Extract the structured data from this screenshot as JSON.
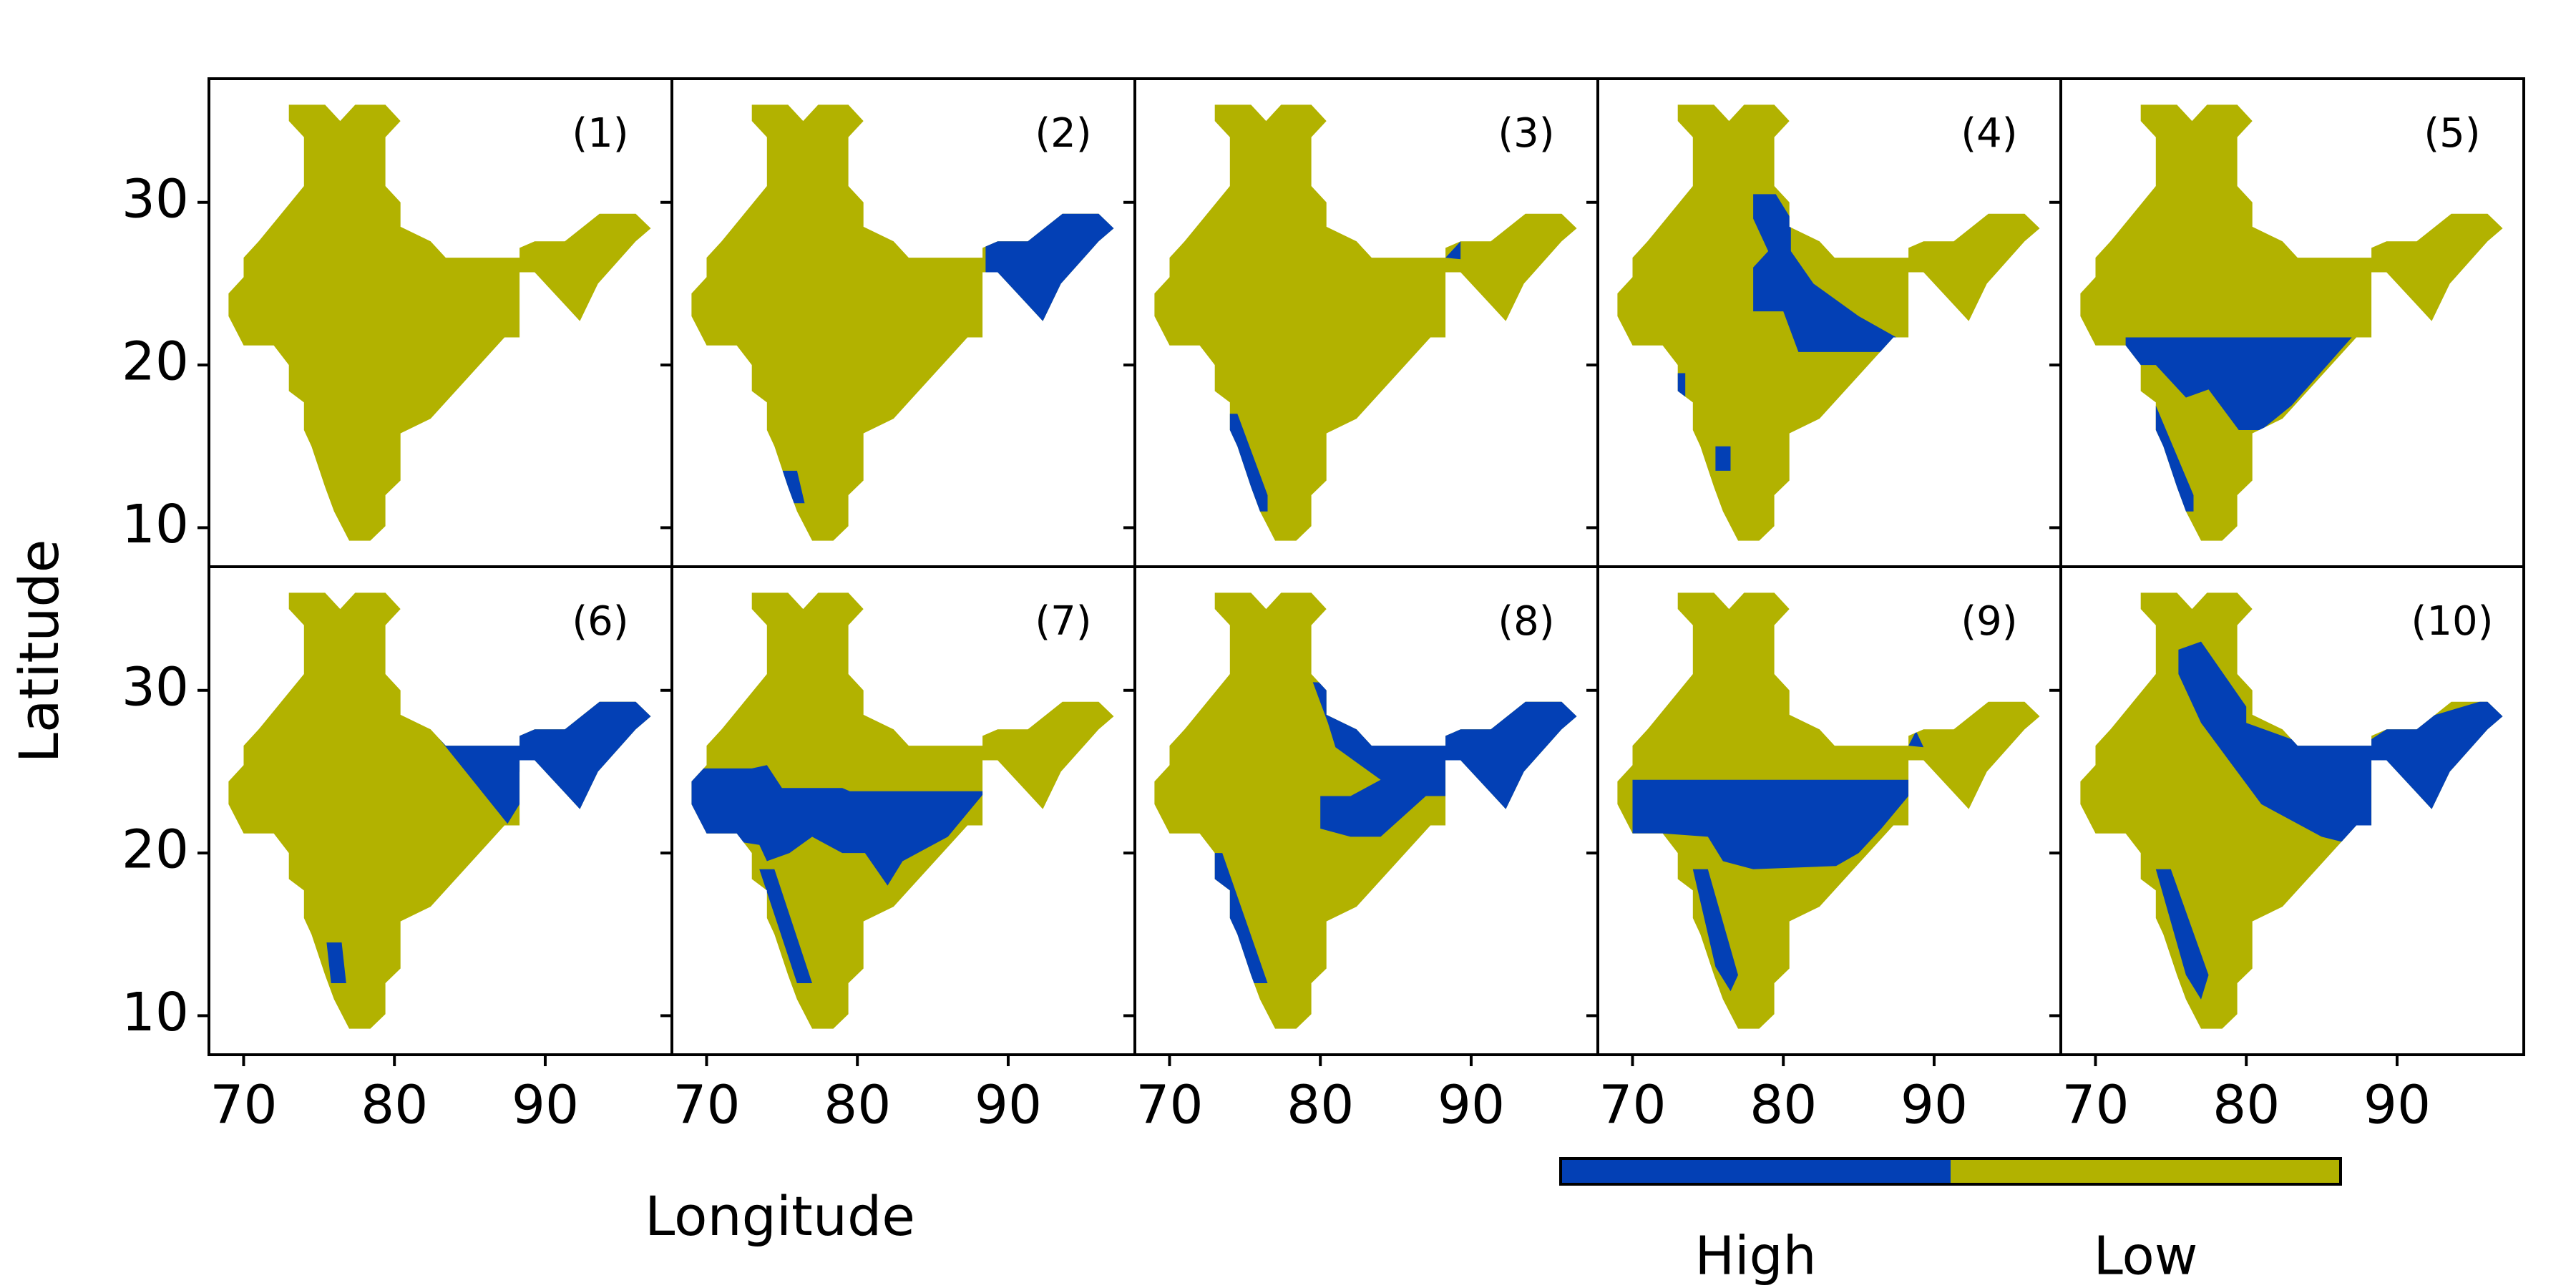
{
  "chart_data": {
    "type": "map",
    "xlabel": "Longitude",
    "ylabel": "Latitude",
    "xlim": [
      67.7,
      98.4
    ],
    "ylim": [
      7.6,
      37.6
    ],
    "xticks": [
      70,
      80,
      90
    ],
    "yticks": [
      10,
      20,
      30
    ],
    "outline": [
      [
        73,
        36
      ],
      [
        75.4,
        36
      ],
      [
        76.4,
        35
      ],
      [
        77.4,
        36
      ],
      [
        79.4,
        36
      ],
      [
        80.4,
        35
      ],
      [
        79.4,
        34
      ],
      [
        79.4,
        31
      ],
      [
        80.4,
        30
      ],
      [
        80.4,
        28.5
      ],
      [
        82.4,
        27.6
      ],
      [
        83.4,
        26.6
      ],
      [
        88.3,
        26.6
      ],
      [
        88.3,
        27.2
      ],
      [
        89.3,
        27.6
      ],
      [
        91.3,
        27.6
      ],
      [
        93.6,
        29.3
      ],
      [
        96,
        29.3
      ],
      [
        97,
        28.4
      ],
      [
        96,
        27.6
      ],
      [
        93.5,
        25
      ],
      [
        92.3,
        22.7
      ],
      [
        91.3,
        23.7
      ],
      [
        89.3,
        25.7
      ],
      [
        88.3,
        25.7
      ],
      [
        88.3,
        21.7
      ],
      [
        87.3,
        21.7
      ],
      [
        82.4,
        16.7
      ],
      [
        80.4,
        15.8
      ],
      [
        80.4,
        12.9
      ],
      [
        79.4,
        12
      ],
      [
        79.4,
        10.1
      ],
      [
        78.4,
        9.2
      ],
      [
        77,
        9.2
      ],
      [
        76,
        11
      ],
      [
        75.4,
        12.5
      ],
      [
        74.5,
        15
      ],
      [
        74,
        16
      ],
      [
        74,
        17.7
      ],
      [
        73,
        18.4
      ],
      [
        73,
        20
      ],
      [
        72,
        21.2
      ],
      [
        70,
        21.2
      ],
      [
        69,
        23
      ],
      [
        69,
        24.4
      ],
      [
        70,
        25.4
      ],
      [
        70,
        26.6
      ],
      [
        71,
        27.6
      ],
      [
        74,
        31
      ],
      [
        74,
        34
      ],
      [
        73,
        35
      ]
    ],
    "panels": [
      {
        "label": "(1)",
        "high": []
      },
      {
        "label": "(2)",
        "high": [
          [
            [
              88.5,
              30
            ],
            [
              98,
              30
            ],
            [
              98,
              20
            ],
            [
              92,
              20
            ],
            [
              88.5,
              25.7
            ]
          ],
          [
            [
              75,
              13.5
            ],
            [
              76,
              13.5
            ],
            [
              76.5,
              11.5
            ],
            [
              75.5,
              11.5
            ]
          ]
        ]
      },
      {
        "label": "(3)",
        "high": [
          [
            [
              88.3,
              26.6
            ],
            [
              89.3,
              27.6
            ],
            [
              89.3,
              26.5
            ]
          ],
          [
            [
              72,
              17
            ],
            [
              74.5,
              17
            ],
            [
              76.5,
              12
            ],
            [
              76.5,
              11
            ],
            [
              75,
              11
            ]
          ]
        ]
      },
      {
        "label": "(4)",
        "high": [
          [
            [
              78,
              30.5
            ],
            [
              79.5,
              30.5
            ],
            [
              80.5,
              29
            ],
            [
              80.5,
              27
            ],
            [
              82,
              25
            ],
            [
              85,
              23
            ],
            [
              87.5,
              21.7
            ],
            [
              86.5,
              20.8
            ],
            [
              81,
              20.8
            ],
            [
              80,
              23.3
            ],
            [
              78,
              23.3
            ],
            [
              78,
              26
            ],
            [
              79,
              27
            ],
            [
              78,
              29
            ]
          ],
          [
            [
              72,
              19.5
            ],
            [
              73.5,
              19.5
            ],
            [
              73.5,
              18
            ],
            [
              72,
              18
            ]
          ],
          [
            [
              75.5,
              15
            ],
            [
              76.5,
              15
            ],
            [
              76.5,
              13.5
            ],
            [
              75.5,
              13.5
            ]
          ]
        ]
      },
      {
        "label": "(5)",
        "high": [
          [
            [
              72,
              21.7
            ],
            [
              87,
              21.7
            ],
            [
              83,
              17.5
            ],
            [
              81,
              16
            ],
            [
              79.5,
              16
            ],
            [
              77.5,
              18.5
            ],
            [
              76,
              18
            ],
            [
              74,
              20
            ],
            [
              72,
              20
            ]
          ],
          [
            [
              72,
              17.5
            ],
            [
              74,
              17.5
            ],
            [
              76.5,
              12
            ],
            [
              76.5,
              11
            ],
            [
              75,
              11
            ]
          ]
        ]
      },
      {
        "label": "(6)",
        "high": [
          [
            [
              83,
              30
            ],
            [
              98,
              30
            ],
            [
              98,
              20
            ],
            [
              92,
              20
            ],
            [
              88.3,
              25
            ],
            [
              88.3,
              23
            ],
            [
              87.5,
              21.8
            ],
            [
              83,
              27
            ]
          ],
          [
            [
              75.5,
              14.5
            ],
            [
              76.5,
              14.5
            ],
            [
              76.8,
              12
            ],
            [
              75.8,
              12
            ]
          ]
        ]
      },
      {
        "label": "(7)",
        "high": [
          [
            [
              69,
              25.2
            ],
            [
              73,
              25.2
            ],
            [
              74,
              25.4
            ],
            [
              75,
              24
            ],
            [
              79,
              24
            ],
            [
              79.5,
              23.8
            ],
            [
              88.5,
              23.8
            ],
            [
              86,
              21
            ],
            [
              83,
              19.5
            ],
            [
              82,
              18
            ],
            [
              80.5,
              20
            ],
            [
              79,
              20
            ],
            [
              77,
              21
            ],
            [
              75.5,
              20
            ],
            [
              74,
              19.5
            ],
            [
              73.5,
              20.5
            ],
            [
              70,
              21
            ],
            [
              69,
              22
            ]
          ],
          [
            [
              73.5,
              19
            ],
            [
              74.5,
              19
            ],
            [
              77,
              12
            ],
            [
              76,
              12
            ]
          ]
        ]
      },
      {
        "label": "(8)",
        "high": [
          [
            [
              79.5,
              30.5
            ],
            [
              98,
              30
            ],
            [
              98,
              20
            ],
            [
              92,
              20
            ],
            [
              89.3,
              25.7
            ],
            [
              88.3,
              25.7
            ],
            [
              88.3,
              23.5
            ],
            [
              87,
              23.5
            ],
            [
              84,
              21
            ],
            [
              82,
              21
            ],
            [
              80,
              21.5
            ],
            [
              80,
              23.5
            ],
            [
              82,
              23.5
            ],
            [
              84,
              24.5
            ],
            [
              81,
              26.5
            ],
            [
              80.5,
              28
            ]
          ],
          [
            [
              72,
              20
            ],
            [
              73.5,
              20
            ],
            [
              76.5,
              12
            ],
            [
              75.5,
              12
            ],
            [
              73,
              17
            ]
          ]
        ]
      },
      {
        "label": "(9)",
        "high": [
          [
            [
              70,
              24.5
            ],
            [
              88.3,
              24.5
            ],
            [
              88.3,
              23.5
            ],
            [
              86.5,
              21.5
            ],
            [
              85,
              20
            ],
            [
              83.5,
              19.2
            ],
            [
              78,
              19
            ],
            [
              76,
              19.5
            ],
            [
              75,
              21
            ],
            [
              72,
              21.2
            ],
            [
              70,
              21.2
            ]
          ],
          [
            [
              74,
              19
            ],
            [
              75,
              19
            ],
            [
              77,
              12.5
            ],
            [
              76.5,
              11.5
            ],
            [
              75.5,
              13
            ]
          ],
          [
            [
              88.3,
              26.6
            ],
            [
              88.8,
              27.5
            ],
            [
              89.3,
              26.5
            ]
          ]
        ]
      },
      {
        "label": "(10)",
        "high": [
          [
            [
              75.5,
              32.5
            ],
            [
              77,
              33
            ],
            [
              80,
              29
            ],
            [
              80,
              28
            ],
            [
              83,
              27
            ],
            [
              88.3,
              27
            ],
            [
              89.3,
              27.6
            ],
            [
              98,
              30
            ],
            [
              98,
              20
            ],
            [
              92,
              20
            ],
            [
              89.3,
              25.7
            ],
            [
              88.3,
              25.7
            ],
            [
              88.3,
              21.7
            ],
            [
              86.3,
              20.7
            ],
            [
              85,
              21
            ],
            [
              81,
              23
            ],
            [
              79,
              25.5
            ],
            [
              77,
              28
            ],
            [
              75.5,
              31
            ]
          ],
          [
            [
              74,
              19
            ],
            [
              75,
              19
            ],
            [
              77.5,
              12.5
            ],
            [
              77,
              11
            ],
            [
              76,
              12.5
            ]
          ]
        ]
      }
    ],
    "legend": {
      "categories": [
        "High",
        "Low"
      ],
      "colors": [
        "#0340b5",
        "#b2b200"
      ]
    }
  }
}
